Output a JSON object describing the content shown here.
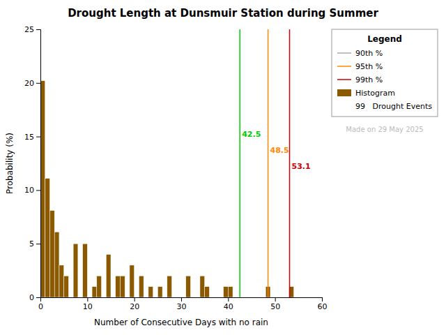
{
  "chart_data": {
    "type": "histogram",
    "title": "Drought Length at Dunsmuir Station during Summer",
    "xlabel": "Number of Consecutive Days with no rain",
    "ylabel": "Probability (%)",
    "bins": [
      0,
      1,
      2,
      3,
      4,
      5,
      6,
      7,
      8,
      9,
      10,
      11,
      12,
      13,
      14,
      15,
      16,
      17,
      18,
      19,
      20,
      21,
      22,
      23,
      24,
      25,
      26,
      27,
      28,
      29,
      30,
      31,
      32,
      33,
      34,
      35,
      36,
      37,
      38,
      39,
      40,
      41,
      42,
      43,
      44,
      45,
      46,
      47,
      48,
      49,
      50,
      51,
      52,
      53,
      54,
      55,
      56,
      57,
      58,
      59,
      60
    ],
    "series": [
      {
        "name": "Histogram",
        "color": "#8B5A00",
        "values": [
          20.2,
          11.1,
          8.1,
          6.1,
          3.0,
          2.0,
          0.0,
          5.0,
          0.0,
          5.0,
          0.0,
          1.0,
          2.0,
          0.0,
          4.0,
          0.0,
          2.0,
          2.0,
          0.0,
          3.0,
          0.0,
          2.0,
          0.0,
          1.0,
          0.0,
          1.0,
          0.0,
          2.0,
          0.0,
          0.0,
          0.0,
          2.0,
          0.0,
          0.0,
          2.0,
          1.0,
          0.0,
          0.0,
          0.0,
          1.0,
          1.0,
          0.0,
          0.0,
          0.0,
          0.0,
          0.0,
          0.0,
          0.0,
          1.0,
          0.0,
          0.0,
          0.0,
          0.0,
          1.0,
          0.0,
          0.0,
          0.0,
          0.0,
          0.0,
          0.0
        ]
      }
    ],
    "vlines": [
      {
        "name": "90th %",
        "x": 42.5,
        "color": "#00cc00",
        "legend_color": "#aaaaaa",
        "label_y": 15.0
      },
      {
        "name": "95th %",
        "x": 48.5,
        "color": "#ff8800",
        "legend_color": "#ff8800",
        "label_y": 13.5
      },
      {
        "name": "99th %",
        "x": 53.1,
        "color": "#cc0000",
        "legend_color": "#cc0000",
        "label_y": 12.0
      }
    ],
    "legend_title": "Legend",
    "legend_note": "99   Drought Events",
    "watermark": "Made on 29 May 2025",
    "xlim": [
      0,
      60
    ],
    "ylim": [
      0,
      25
    ],
    "xticks": [
      0,
      10,
      20,
      30,
      40,
      50,
      60
    ],
    "yticks": [
      0,
      5,
      10,
      15,
      20,
      25
    ],
    "grid": false,
    "legend": "upper right"
  }
}
